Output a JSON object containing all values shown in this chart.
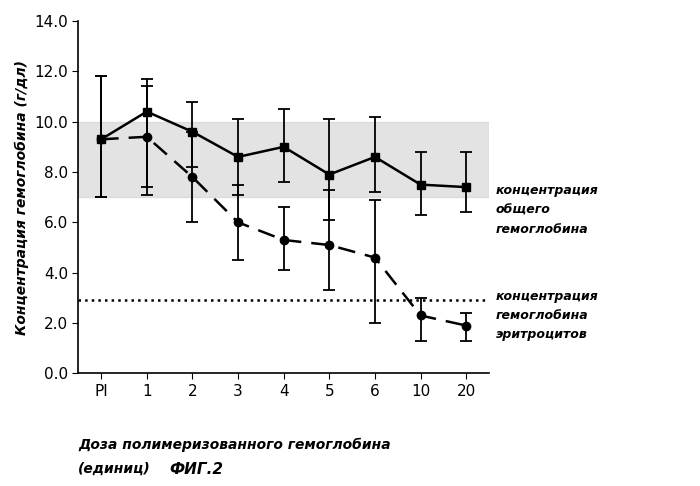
{
  "x_positions": [
    0,
    1,
    2,
    3,
    4,
    5,
    6,
    7,
    8
  ],
  "x_labels": [
    "PI",
    "1",
    "2",
    "3",
    "4",
    "5",
    "6",
    "10",
    "20"
  ],
  "solid_y": [
    9.3,
    10.4,
    9.6,
    8.6,
    9.0,
    7.9,
    8.6,
    7.5,
    7.4
  ],
  "solid_yerr_upper": [
    2.5,
    1.3,
    1.2,
    1.5,
    1.5,
    2.2,
    1.6,
    1.3,
    1.4
  ],
  "solid_yerr_lower": [
    2.3,
    3.0,
    1.4,
    1.5,
    1.4,
    1.8,
    1.4,
    1.2,
    1.0
  ],
  "dashed_y": [
    9.3,
    9.4,
    7.8,
    6.0,
    5.3,
    5.1,
    4.6,
    2.3,
    1.9
  ],
  "dashed_yerr_upper": [
    2.5,
    2.0,
    1.8,
    1.5,
    1.3,
    2.2,
    2.3,
    0.7,
    0.5
  ],
  "dashed_yerr_lower": [
    2.3,
    2.3,
    1.8,
    1.5,
    1.2,
    1.8,
    2.6,
    1.0,
    0.6
  ],
  "shaded_band_lower": 7.0,
  "shaded_band_upper": 10.0,
  "dotted_line_y": 2.9,
  "ylabel": "Концентрация гемоглобина (г/дл)",
  "xlabel_line1": "Доза полимеризованного гемоглобина",
  "xlabel_line2": "(единиц)",
  "fig_label": "ФИГ.2",
  "label_solid_line1": "концентрация",
  "label_solid_line2": "общего",
  "label_solid_line3": "гемоглобина",
  "label_dashed_line1": "концентрация",
  "label_dashed_line2": "гемоглобина",
  "label_dashed_line3": "эритроцитов",
  "ylim": [
    0,
    14.0
  ],
  "yticks": [
    0.0,
    2.0,
    4.0,
    6.0,
    8.0,
    10.0,
    12.0,
    14.0
  ],
  "bg_color": "#ffffff",
  "shaded_color": "#c8c8c8",
  "shaded_alpha": 0.5,
  "solid_color": "#000000",
  "dashed_color": "#000000",
  "dotted_color": "#000000"
}
